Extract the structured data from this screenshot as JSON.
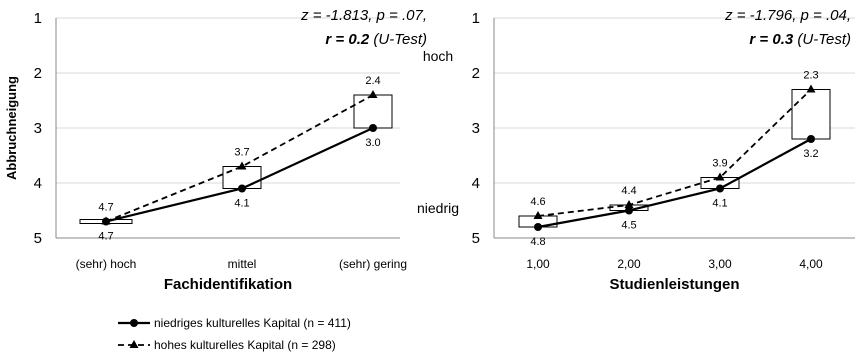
{
  "chart_data": [
    {
      "type": "line",
      "id": "left",
      "categories": [
        "(sehr) hoch",
        "mittel",
        "(sehr) gering"
      ],
      "series": [
        {
          "name": "niedriges kulturelles Kapital (n = 411)",
          "values": [
            4.7,
            4.1,
            3.0
          ],
          "labels": [
            "4.7",
            "4.1",
            "3.0"
          ],
          "style": "solid",
          "marker": "circle"
        },
        {
          "name": "hohes kulturelles Kapital (n = 298)",
          "values": [
            4.7,
            3.7,
            2.4
          ],
          "labels": [
            "4.7",
            "3.7",
            "2.4"
          ],
          "style": "dashed",
          "marker": "triangle"
        }
      ],
      "xlabel": "Fachidentifikation",
      "ylabel": "Abbruchneigung",
      "ylim": [
        1,
        5
      ],
      "y_inverted": true,
      "yticks": [
        "1",
        "2",
        "3",
        "4",
        "5"
      ],
      "stats": {
        "line1": "z = -1.813, p = .07,",
        "line2_bold": "r = 0.2",
        "line2_rest": " (U-Test)"
      }
    },
    {
      "type": "line",
      "id": "right",
      "categories": [
        "1,00",
        "2,00",
        "3,00",
        "4,00"
      ],
      "series": [
        {
          "name": "niedriges kulturelles Kapital (n = 411)",
          "values": [
            4.8,
            4.5,
            4.1,
            3.2
          ],
          "labels": [
            "4.8",
            "4.5",
            "4.1",
            "3.2"
          ],
          "style": "solid",
          "marker": "circle"
        },
        {
          "name": "hohes kulturelles Kapital (n = 298)",
          "values": [
            4.6,
            4.4,
            3.9,
            2.3
          ],
          "labels": [
            "4.6",
            "4.4",
            "3.9",
            "2.3"
          ],
          "style": "dashed",
          "marker": "triangle"
        }
      ],
      "xlabel": "Studienleistungen",
      "ylabel": "",
      "ylim": [
        1,
        5
      ],
      "y_inverted": true,
      "yticks": [
        "1",
        "2",
        "3",
        "4",
        "5"
      ],
      "side_labels": {
        "top": "hoch",
        "bottom": "niedrig"
      },
      "stats": {
        "line1": "z = -1.796, p = .04,",
        "line2_bold": "r = 0.3",
        "line2_rest": " (U-Test)"
      }
    }
  ],
  "legend": [
    {
      "label": "niedriges kulturelles Kapital (n = 411)",
      "style": "solid",
      "marker": "circle"
    },
    {
      "label": "hohes kulturelles Kapital (n = 298)",
      "style": "dashed",
      "marker": "triangle"
    }
  ]
}
